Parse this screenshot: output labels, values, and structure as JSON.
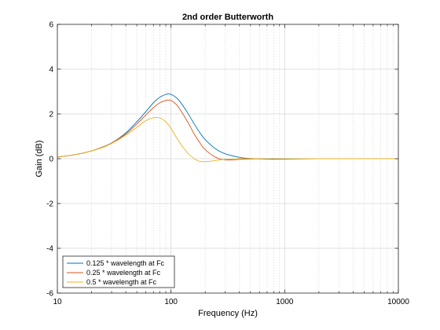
{
  "chart_data": {
    "type": "line",
    "title": "2nd order Butterworth",
    "xlabel": "Frequency (Hz)",
    "ylabel": "Gain (dB)",
    "xscale": "log",
    "xlim": [
      10,
      10000
    ],
    "ylim": [
      -6,
      6
    ],
    "grid": "on",
    "grid_style": "dotted",
    "legend_location": "bottom-left",
    "xticks": [
      10,
      100,
      1000,
      10000
    ],
    "xtick_labels": [
      "10",
      "100",
      "1000",
      "10000"
    ],
    "yticks": [
      -6,
      -4,
      -2,
      0,
      2,
      4,
      6
    ],
    "ytick_labels": [
      "-6",
      "-4",
      "-2",
      "0",
      "2",
      "4",
      "6"
    ],
    "series": [
      {
        "name": "0.125 * wavelength at Fc",
        "color": "#0072BD",
        "x": [
          10,
          15,
          20,
          25,
          30,
          40,
          50,
          60,
          70,
          80,
          90,
          95,
          100,
          110,
          120,
          140,
          160,
          180,
          200,
          250,
          300,
          400,
          500,
          700,
          1000,
          2000,
          5000,
          10000
        ],
        "y": [
          0.07,
          0.2,
          0.35,
          0.52,
          0.7,
          1.15,
          1.65,
          2.1,
          2.5,
          2.75,
          2.87,
          2.9,
          2.87,
          2.75,
          2.55,
          2.05,
          1.55,
          1.15,
          0.85,
          0.42,
          0.22,
          0.06,
          0.01,
          -0.02,
          -0.02,
          0.0,
          0.0,
          0.0
        ]
      },
      {
        "name": "0.25 * wavelength at Fc",
        "color": "#D95319",
        "x": [
          10,
          15,
          20,
          25,
          30,
          40,
          50,
          60,
          70,
          80,
          90,
          95,
          100,
          110,
          120,
          140,
          160,
          180,
          200,
          250,
          300,
          350,
          400,
          500,
          700,
          1000,
          2000,
          5000,
          10000
        ],
        "y": [
          0.07,
          0.2,
          0.35,
          0.52,
          0.7,
          1.1,
          1.55,
          1.95,
          2.28,
          2.5,
          2.6,
          2.62,
          2.6,
          2.45,
          2.2,
          1.65,
          1.1,
          0.7,
          0.4,
          0.05,
          -0.05,
          -0.05,
          -0.03,
          -0.01,
          0.0,
          0.0,
          0.0,
          0.0,
          0.0
        ]
      },
      {
        "name": "0.5 * wavelength at Fc",
        "color": "#EDB120",
        "x": [
          10,
          15,
          20,
          25,
          30,
          40,
          50,
          60,
          70,
          75,
          80,
          90,
          100,
          110,
          120,
          140,
          160,
          180,
          200,
          230,
          260,
          300,
          400,
          500,
          700,
          1000,
          2000,
          5000,
          10000
        ],
        "y": [
          0.07,
          0.2,
          0.35,
          0.5,
          0.68,
          1.05,
          1.4,
          1.7,
          1.83,
          1.84,
          1.82,
          1.65,
          1.35,
          1.0,
          0.7,
          0.25,
          0.0,
          -0.12,
          -0.13,
          -0.1,
          -0.06,
          -0.03,
          0.0,
          0.01,
          0.0,
          0.0,
          0.0,
          0.0,
          0.0
        ]
      }
    ]
  }
}
